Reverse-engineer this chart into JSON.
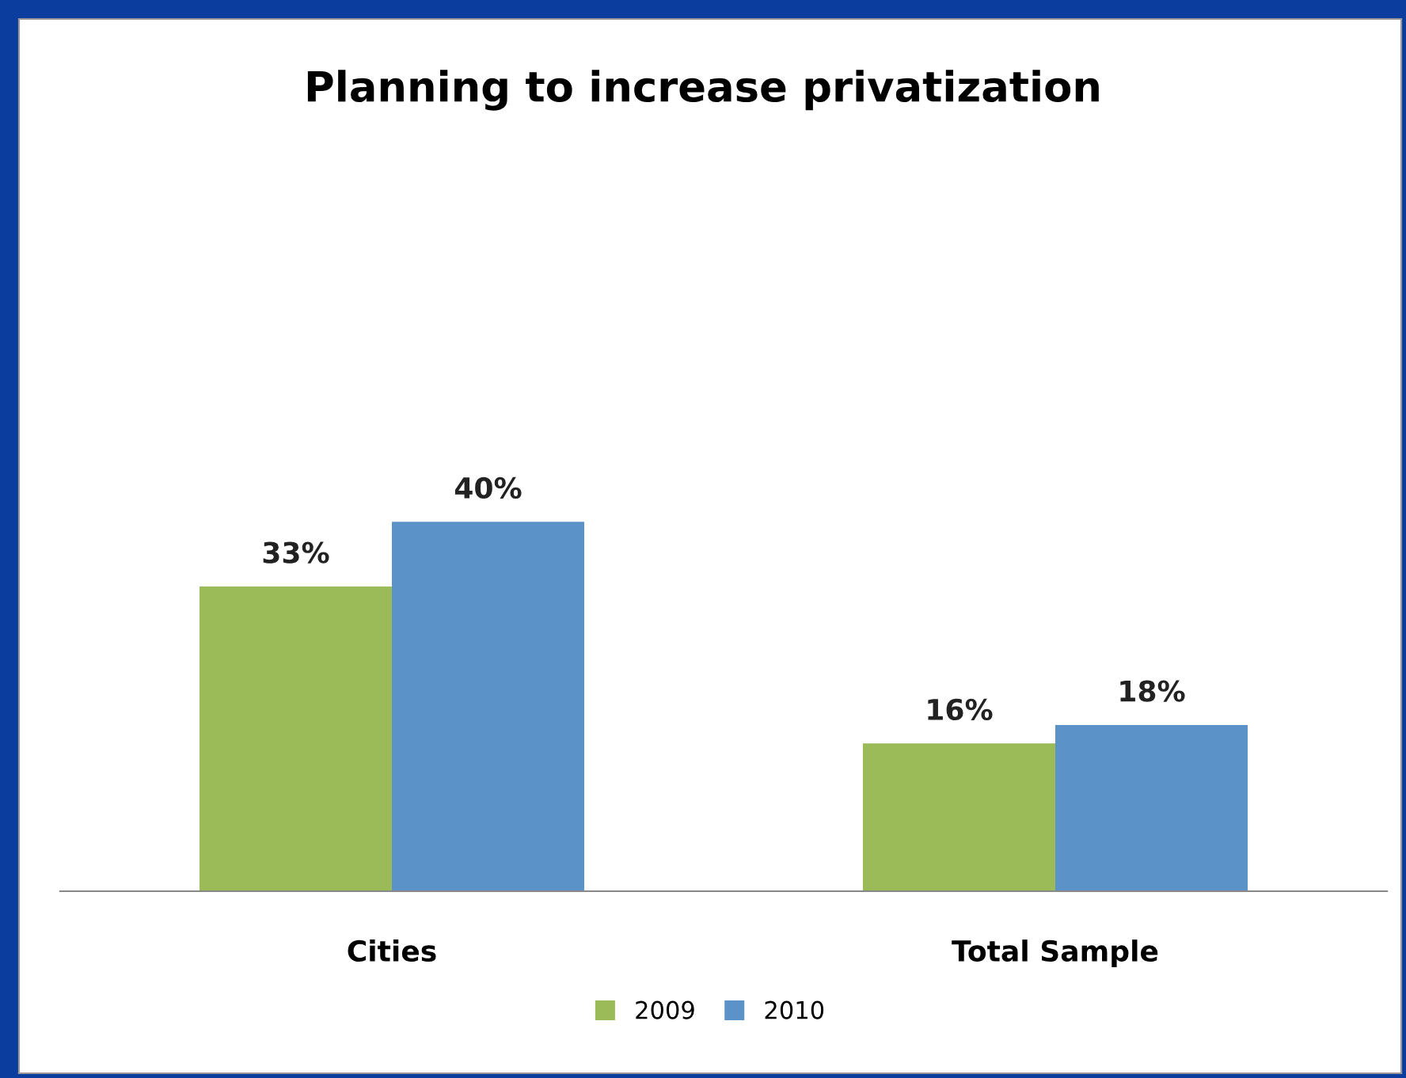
{
  "chart_data": {
    "type": "bar",
    "title": "Planning to increase privatization",
    "categories": [
      "Cities",
      "Total Sample"
    ],
    "series": [
      {
        "name": "2009",
        "color": "#9bbb59",
        "values": [
          33,
          16
        ],
        "value_labels": [
          "33%",
          "16%"
        ]
      },
      {
        "name": "2010",
        "color": "#5b93c8",
        "values": [
          40,
          18
        ],
        "value_labels": [
          "40%",
          "18%"
        ]
      }
    ],
    "tick_labels": "x",
    "legend": "bottom"
  }
}
